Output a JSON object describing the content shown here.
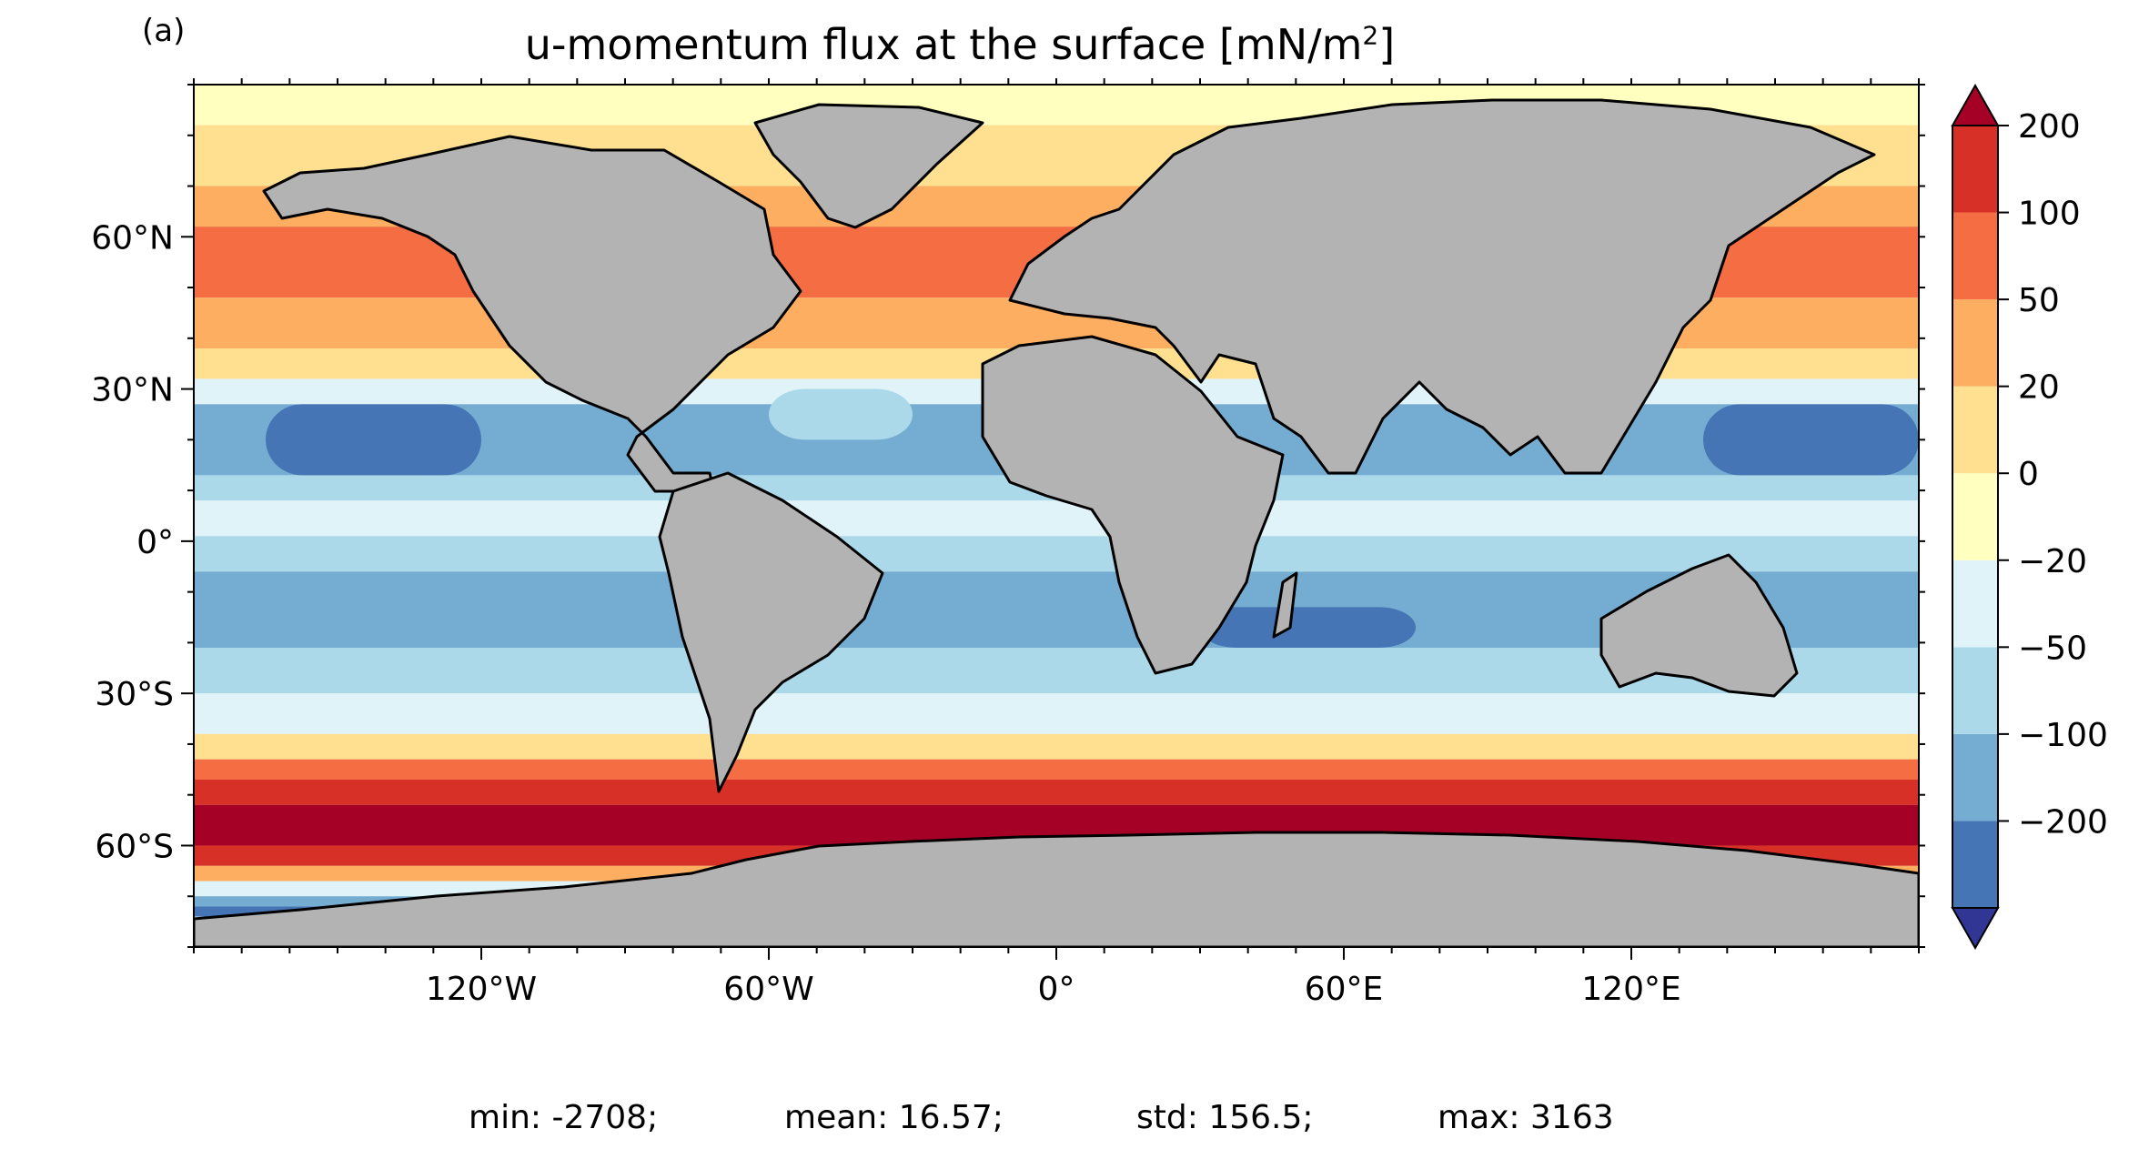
{
  "panel_label": "(a)",
  "title": {
    "main": "u-momentum flux at the surface [mN/m",
    "superscript": "2",
    "close": "]"
  },
  "chart_data": {
    "type": "heatmap",
    "projection": "plate-carree",
    "xlim": [
      -180,
      180
    ],
    "ylim": [
      -80,
      90
    ],
    "x_ticks": [
      {
        "value": -120,
        "label": "120°W"
      },
      {
        "value": -60,
        "label": "60°W"
      },
      {
        "value": 0,
        "label": "0°"
      },
      {
        "value": 60,
        "label": "60°E"
      },
      {
        "value": 120,
        "label": "120°E"
      }
    ],
    "y_ticks": [
      {
        "value": 60,
        "label": "60°N"
      },
      {
        "value": 30,
        "label": "30°N"
      },
      {
        "value": 0,
        "label": "0°"
      },
      {
        "value": -30,
        "label": "30°S"
      },
      {
        "value": -60,
        "label": "60°S"
      }
    ],
    "land_color": "#b3b3b3",
    "colorbar": {
      "extend": "both",
      "ticks": [
        "200",
        "100",
        "50",
        "20",
        "0",
        "−20",
        "−50",
        "−100",
        "−200"
      ],
      "levels": [
        -200,
        -100,
        -50,
        -20,
        0,
        20,
        50,
        100,
        200
      ],
      "colors": [
        "#4575b4",
        "#74add1",
        "#abd9e9",
        "#e0f3f8",
        "#ffffbf",
        "#fee090",
        "#fdae61",
        "#f46d43",
        "#d73027"
      ],
      "under_color": "#313695",
      "over_color": "#a50026"
    },
    "stats": [
      {
        "label": "min:",
        "value": "-2708;"
      },
      {
        "label": "mean:",
        "value": "16.57;"
      },
      {
        "label": "std:",
        "value": "156.5;"
      },
      {
        "label": "max:",
        "value": "3163"
      }
    ]
  }
}
